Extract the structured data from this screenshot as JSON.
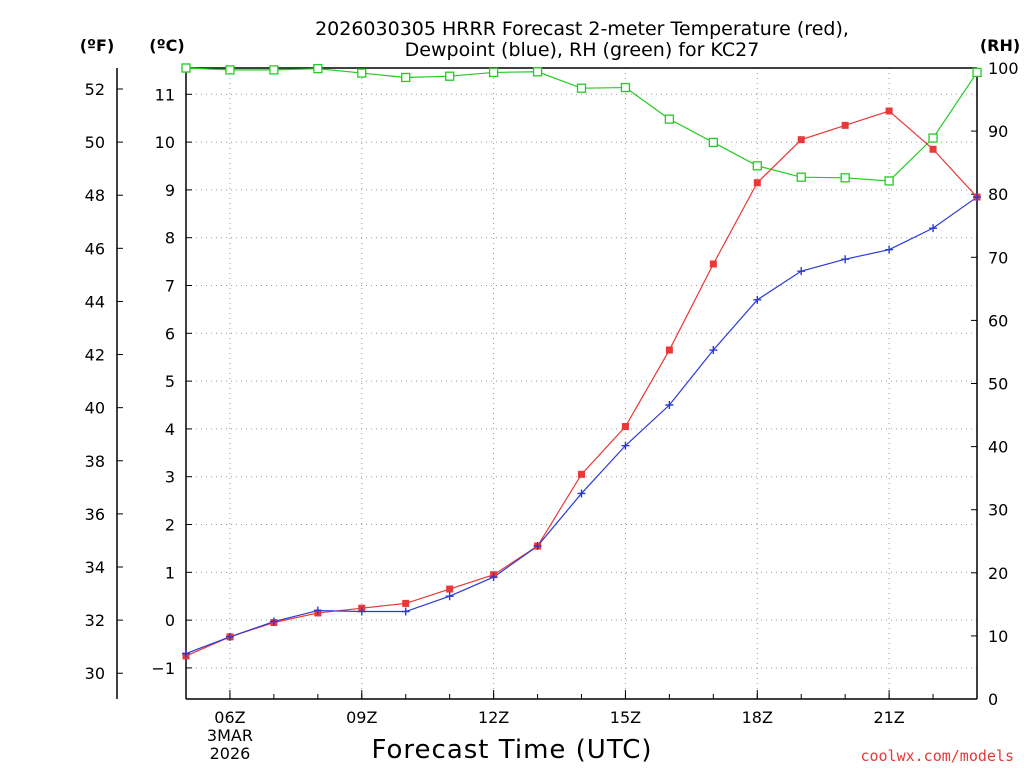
{
  "chart_data": {
    "type": "line",
    "title_line1": "2026030305 HRRR Forecast 2-meter Temperature (red),",
    "title_line2": "Dewpoint (blue), RH (green) for KC27",
    "xlabel": "Forecast Time (UTC)",
    "credit": "coolwx.com/models",
    "unit_labels": {
      "f": "(ºF)",
      "c": "(ºC)",
      "rh": "(RH)"
    },
    "x_ticks": [
      {
        "hour": 6,
        "label": "06Z",
        "sub1": "3MAR",
        "sub2": "2026"
      },
      {
        "hour": 9,
        "label": "09Z"
      },
      {
        "hour": 12,
        "label": "12Z"
      },
      {
        "hour": 15,
        "label": "15Z"
      },
      {
        "hour": 18,
        "label": "18Z"
      },
      {
        "hour": 21,
        "label": "21Z"
      }
    ],
    "xlim": [
      5,
      23
    ],
    "ylim_c": [
      -1.65,
      11.55
    ],
    "ylim_rh": [
      0,
      100
    ],
    "y_ticks_f": [
      "30",
      "32",
      "34",
      "36",
      "38",
      "40",
      "42",
      "44",
      "46",
      "48",
      "50",
      "52"
    ],
    "y_ticks_c": [
      "−1",
      "0",
      "1",
      "2",
      "3",
      "4",
      "5",
      "6",
      "7",
      "8",
      "9",
      "10",
      "11"
    ],
    "y_ticks_rh": [
      "0",
      "10",
      "20",
      "30",
      "40",
      "50",
      "60",
      "70",
      "80",
      "90",
      "100"
    ],
    "colors": {
      "temperature": "#e83838",
      "dewpoint": "#2a3ad8",
      "rh": "#22cc22"
    },
    "hours": [
      5,
      6,
      7,
      8,
      9,
      10,
      11,
      12,
      13,
      14,
      15,
      16,
      17,
      18,
      19,
      20,
      21,
      22,
      23
    ],
    "series": [
      {
        "name": "Temperature (°C)",
        "values": [
          -0.75,
          -0.35,
          -0.05,
          0.15,
          0.25,
          0.35,
          0.65,
          0.95,
          1.55,
          3.05,
          4.05,
          5.65,
          7.45,
          9.15,
          10.05,
          10.35,
          10.65,
          9.85,
          8.85
        ]
      },
      {
        "name": "Dewpoint (°C)",
        "values": [
          -0.7,
          -0.35,
          -0.03,
          0.2,
          0.18,
          0.18,
          0.5,
          0.9,
          1.55,
          2.65,
          3.65,
          4.5,
          5.65,
          6.7,
          7.3,
          7.55,
          7.75,
          8.2,
          8.85
        ]
      },
      {
        "name": "RH (%)",
        "values": [
          100,
          99.7,
          99.7,
          99.9,
          99.2,
          98.5,
          98.7,
          99.3,
          99.4,
          96.8,
          96.9,
          91.9,
          88.2,
          84.5,
          82.7,
          82.6,
          82.1,
          88.9,
          99.3
        ]
      }
    ]
  }
}
